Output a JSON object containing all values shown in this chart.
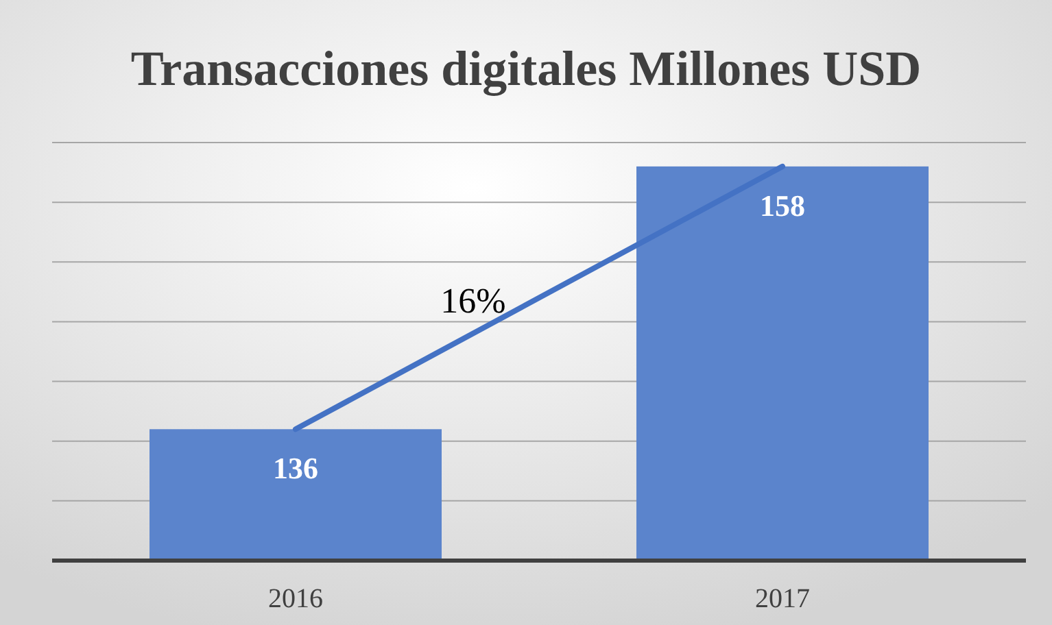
{
  "chart_data": {
    "type": "bar",
    "title": "Transacciones digitales Millones USD",
    "categories": [
      "2016",
      "2017"
    ],
    "series": [
      {
        "color": "#5b84cc",
        "values": [
          136,
          158
        ],
        "value_labels": [
          "136",
          "158"
        ]
      },
      {
        "type": "line",
        "color": "#4472c4",
        "values": [
          136,
          158
        ]
      }
    ],
    "ylim": [
      125,
      160
    ],
    "yticks": [
      {
        "value": 130,
        "label": null
      },
      {
        "value": 135,
        "label": null
      },
      {
        "value": 140,
        "label": null
      },
      {
        "value": 145,
        "label": null
      },
      {
        "value": 150,
        "label": null
      },
      {
        "value": 155,
        "label": null
      },
      {
        "value": 160,
        "label": null
      }
    ],
    "tick_labels": "x",
    "grid": "y",
    "annotations": [
      "16%"
    ]
  }
}
